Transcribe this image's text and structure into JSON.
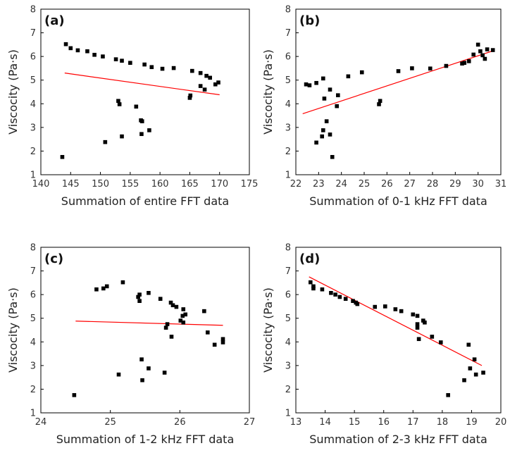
{
  "chart_data": [
    {
      "type": "scatter",
      "panel_label": "(a)",
      "xlabel": "Summation of entire FFT data",
      "ylabel": "Viscocity (Pa·s)",
      "xlim": [
        140,
        175
      ],
      "ylim": [
        1,
        8
      ],
      "xticks": [
        140,
        145,
        150,
        155,
        160,
        165,
        170,
        175
      ],
      "yticks": [
        1,
        2,
        3,
        4,
        5,
        6,
        7,
        8
      ],
      "points": [
        [
          143.6,
          1.75
        ],
        [
          144.2,
          6.52
        ],
        [
          145.0,
          6.35
        ],
        [
          146.2,
          6.26
        ],
        [
          147.8,
          6.22
        ],
        [
          149.0,
          6.07
        ],
        [
          150.4,
          6.0
        ],
        [
          152.6,
          5.88
        ],
        [
          153.6,
          5.82
        ],
        [
          155.0,
          5.73
        ],
        [
          157.4,
          5.66
        ],
        [
          158.6,
          5.55
        ],
        [
          160.4,
          5.48
        ],
        [
          162.3,
          5.51
        ],
        [
          165.4,
          5.39
        ],
        [
          166.8,
          5.3
        ],
        [
          167.8,
          5.18
        ],
        [
          168.4,
          5.1
        ],
        [
          169.3,
          4.82
        ],
        [
          169.8,
          4.9
        ],
        [
          166.8,
          4.75
        ],
        [
          167.5,
          4.6
        ],
        [
          165.1,
          4.35
        ],
        [
          165.0,
          4.25
        ],
        [
          153.0,
          4.12
        ],
        [
          153.2,
          3.98
        ],
        [
          156.0,
          3.88
        ],
        [
          156.8,
          3.3
        ],
        [
          157.0,
          3.26
        ],
        [
          158.2,
          2.88
        ],
        [
          156.9,
          2.72
        ],
        [
          153.6,
          2.62
        ],
        [
          150.8,
          2.38
        ]
      ],
      "fit": {
        "x": [
          144,
          170
        ],
        "y": [
          5.3,
          4.38
        ]
      }
    },
    {
      "type": "scatter",
      "panel_label": "(b)",
      "xlabel": "Summation of 0-1 kHz FFT data",
      "ylabel": "Viscocity (Pa·s)",
      "xlim": [
        22,
        31
      ],
      "ylim": [
        1,
        8
      ],
      "xticks": [
        22,
        23,
        24,
        25,
        26,
        27,
        28,
        29,
        30,
        31
      ],
      "yticks": [
        1,
        2,
        3,
        4,
        5,
        6,
        7,
        8
      ],
      "points": [
        [
          22.45,
          4.82
        ],
        [
          22.6,
          4.78
        ],
        [
          22.9,
          4.88
        ],
        [
          23.2,
          5.07
        ],
        [
          24.3,
          5.16
        ],
        [
          24.9,
          5.33
        ],
        [
          26.5,
          5.38
        ],
        [
          27.1,
          5.5
        ],
        [
          27.9,
          5.49
        ],
        [
          28.6,
          5.6
        ],
        [
          29.3,
          5.7
        ],
        [
          29.4,
          5.73
        ],
        [
          29.6,
          5.8
        ],
        [
          29.8,
          6.08
        ],
        [
          30.0,
          6.5
        ],
        [
          30.1,
          6.22
        ],
        [
          30.2,
          6.05
        ],
        [
          30.3,
          5.9
        ],
        [
          30.4,
          6.3
        ],
        [
          30.65,
          6.27
        ],
        [
          23.25,
          4.22
        ],
        [
          23.5,
          4.6
        ],
        [
          23.85,
          4.36
        ],
        [
          23.8,
          3.9
        ],
        [
          25.7,
          4.12
        ],
        [
          25.65,
          3.98
        ],
        [
          23.35,
          3.26
        ],
        [
          23.15,
          2.62
        ],
        [
          23.2,
          2.88
        ],
        [
          23.5,
          2.7
        ],
        [
          22.9,
          2.36
        ],
        [
          23.6,
          1.75
        ]
      ],
      "fit": {
        "x": [
          22.3,
          30.6
        ],
        "y": [
          3.58,
          6.22
        ]
      }
    },
    {
      "type": "scatter",
      "panel_label": "(c)",
      "xlabel": "Summation of 1-2 kHz FFT data",
      "ylabel": "Viscocity (Pa·s)",
      "xlim": [
        24,
        27
      ],
      "ylim": [
        1,
        8
      ],
      "xticks": [
        24,
        25,
        26,
        27
      ],
      "yticks": [
        1,
        2,
        3,
        4,
        5,
        6,
        7,
        8
      ],
      "points": [
        [
          24.48,
          1.75
        ],
        [
          24.8,
          6.22
        ],
        [
          24.9,
          6.26
        ],
        [
          24.95,
          6.35
        ],
        [
          25.18,
          6.52
        ],
        [
          25.4,
          5.9
        ],
        [
          25.42,
          6.0
        ],
        [
          25.42,
          5.73
        ],
        [
          25.55,
          6.07
        ],
        [
          25.72,
          5.82
        ],
        [
          25.87,
          5.66
        ],
        [
          25.9,
          5.55
        ],
        [
          25.95,
          5.48
        ],
        [
          26.05,
          5.38
        ],
        [
          26.35,
          5.3
        ],
        [
          26.08,
          5.16
        ],
        [
          26.04,
          5.1
        ],
        [
          26.01,
          4.9
        ],
        [
          26.05,
          4.82
        ],
        [
          25.82,
          4.75
        ],
        [
          25.8,
          4.6
        ],
        [
          25.88,
          4.22
        ],
        [
          26.4,
          4.4
        ],
        [
          26.62,
          4.12
        ],
        [
          26.62,
          3.98
        ],
        [
          26.5,
          3.88
        ],
        [
          25.45,
          3.26
        ],
        [
          25.55,
          2.88
        ],
        [
          25.78,
          2.7
        ],
        [
          25.12,
          2.62
        ],
        [
          25.46,
          2.38
        ]
      ],
      "fit": {
        "x": [
          24.5,
          26.62
        ],
        "y": [
          4.88,
          4.7
        ]
      }
    },
    {
      "type": "scatter",
      "panel_label": "(d)",
      "xlabel": "Summation of 2-3 kHz FFT data",
      "ylabel": "Viscocity (Pa·s)",
      "xlim": [
        13,
        20
      ],
      "ylim": [
        1,
        8
      ],
      "xticks": [
        13,
        14,
        15,
        16,
        17,
        18,
        19,
        20
      ],
      "xtick_labels": [
        "13",
        "14",
        "15",
        "16",
        "17",
        "18",
        "19",
        "20"
      ],
      "yticks": [
        1,
        2,
        3,
        4,
        5,
        6,
        7,
        8
      ],
      "points": [
        [
          13.5,
          6.52
        ],
        [
          13.6,
          6.35
        ],
        [
          13.6,
          6.26
        ],
        [
          13.9,
          6.22
        ],
        [
          14.2,
          6.07
        ],
        [
          14.35,
          6.0
        ],
        [
          14.5,
          5.9
        ],
        [
          14.7,
          5.82
        ],
        [
          14.95,
          5.73
        ],
        [
          15.05,
          5.66
        ],
        [
          15.1,
          5.6
        ],
        [
          15.7,
          5.48
        ],
        [
          16.05,
          5.5
        ],
        [
          16.4,
          5.38
        ],
        [
          16.6,
          5.3
        ],
        [
          17.0,
          5.16
        ],
        [
          17.15,
          5.1
        ],
        [
          17.35,
          4.9
        ],
        [
          17.4,
          4.82
        ],
        [
          17.15,
          4.75
        ],
        [
          17.15,
          4.6
        ],
        [
          17.65,
          4.22
        ],
        [
          17.2,
          4.12
        ],
        [
          17.95,
          3.98
        ],
        [
          18.9,
          3.88
        ],
        [
          19.1,
          3.26
        ],
        [
          19.4,
          2.7
        ],
        [
          18.95,
          2.88
        ],
        [
          19.15,
          2.62
        ],
        [
          18.75,
          2.38
        ],
        [
          18.2,
          1.75
        ]
      ],
      "fit": {
        "x": [
          13.45,
          19.35
        ],
        "y": [
          6.75,
          3.0
        ]
      }
    }
  ],
  "colors": {
    "marker": "#000000",
    "fit_line": "#ff0000"
  }
}
